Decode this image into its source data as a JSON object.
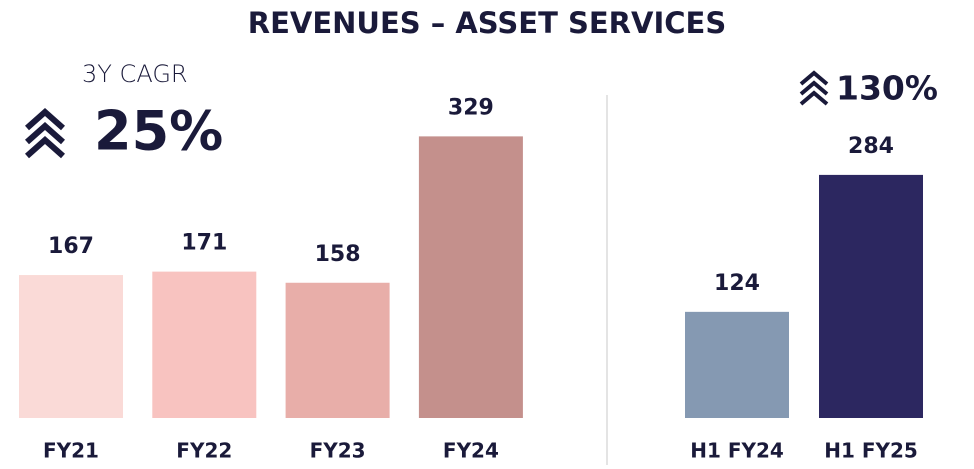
{
  "title": "REVENUES – ASSET SERVICES",
  "chart_data": [
    {
      "type": "bar",
      "annotation_label": "3Y CAGR",
      "annotation": "25%",
      "categories": [
        "FY21",
        "FY22",
        "FY23",
        "FY24"
      ],
      "values": [
        167,
        171,
        158,
        329
      ],
      "colors": [
        "#fadad7",
        "#f8c3c0",
        "#e8aea9",
        "#c4908c"
      ],
      "ylim": [
        0,
        500
      ]
    },
    {
      "type": "bar",
      "annotation": "130%",
      "categories": [
        "H1 FY24",
        "H1 FY25"
      ],
      "values": [
        124,
        284
      ],
      "colors": [
        "#8599b2",
        "#2c2760"
      ],
      "ylim": [
        0,
        500
      ]
    }
  ]
}
